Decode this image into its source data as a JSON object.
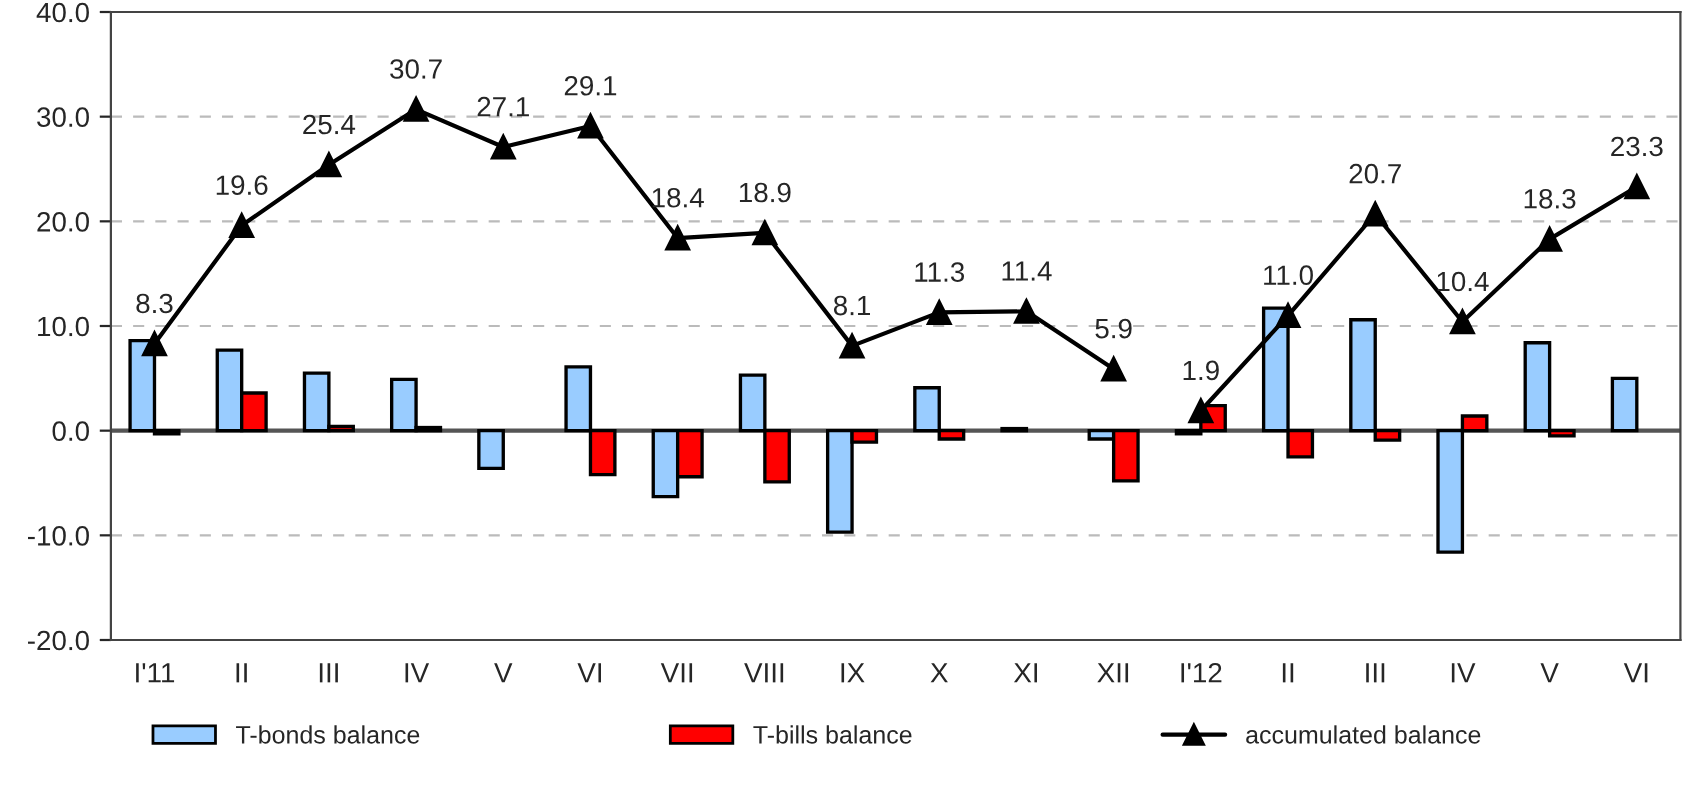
{
  "chart_data": {
    "type": "bar",
    "categories": [
      "I'11",
      "II",
      "III",
      "IV",
      "V",
      "VI",
      "VII",
      "VIII",
      "IX",
      "X",
      "XI",
      "XII",
      "I'12",
      "II",
      "III",
      "IV",
      "V",
      "VI"
    ],
    "series": [
      {
        "name": "T-bonds balance",
        "color": "#99ccff",
        "values": [
          8.6,
          7.7,
          5.5,
          4.9,
          -3.6,
          6.1,
          -6.3,
          5.3,
          -9.7,
          4.1,
          0.2,
          -0.8,
          -0.3,
          11.7,
          10.6,
          -11.6,
          8.4,
          5.0
        ]
      },
      {
        "name": "T-bills balance",
        "color": "#ff0000",
        "values": [
          -0.3,
          3.6,
          0.4,
          0.3,
          null,
          -4.2,
          -4.4,
          -4.9,
          -1.1,
          -0.8,
          null,
          -4.8,
          2.4,
          -2.5,
          -0.9,
          1.4,
          -0.5,
          null
        ]
      },
      {
        "name": "accumulated balance",
        "type": "line",
        "color": "#000000",
        "marker": "triangle",
        "value_labels": [
          "8.3",
          "19.6",
          "25.4",
          "30.7",
          "27.1",
          "29.1",
          "18.4",
          "18.9",
          "8.1",
          "11.3",
          "11.4",
          "5.9",
          null,
          null,
          null,
          null,
          null,
          null
        ],
        "values": [
          8.3,
          19.6,
          25.4,
          30.7,
          27.1,
          29.1,
          18.4,
          18.9,
          8.1,
          11.3,
          11.4,
          5.9,
          null,
          null,
          null,
          null,
          null,
          null
        ]
      },
      {
        "type": "line",
        "color": "#000000",
        "marker": "triangle",
        "value_labels": [
          null,
          null,
          null,
          null,
          null,
          null,
          null,
          null,
          null,
          null,
          null,
          null,
          "1.9",
          "11.0",
          "20.7",
          "10.4",
          "18.3",
          "23.3"
        ],
        "values": [
          null,
          null,
          null,
          null,
          null,
          null,
          null,
          null,
          null,
          null,
          null,
          null,
          1.9,
          11.0,
          20.7,
          10.4,
          18.3,
          23.3
        ]
      }
    ],
    "ylim": [
      -20,
      40
    ],
    "yticks": [
      {
        "value": -20,
        "label": "-20.0"
      },
      {
        "value": -10,
        "label": "-10.0"
      },
      {
        "value": 0,
        "label": "0.0"
      },
      {
        "value": 10,
        "label": "10.0"
      },
      {
        "value": 20,
        "label": "20.0"
      },
      {
        "value": 30,
        "label": "30.0"
      },
      {
        "value": 40,
        "label": "40.0"
      }
    ],
    "grid": "y",
    "legend": "bottom"
  }
}
